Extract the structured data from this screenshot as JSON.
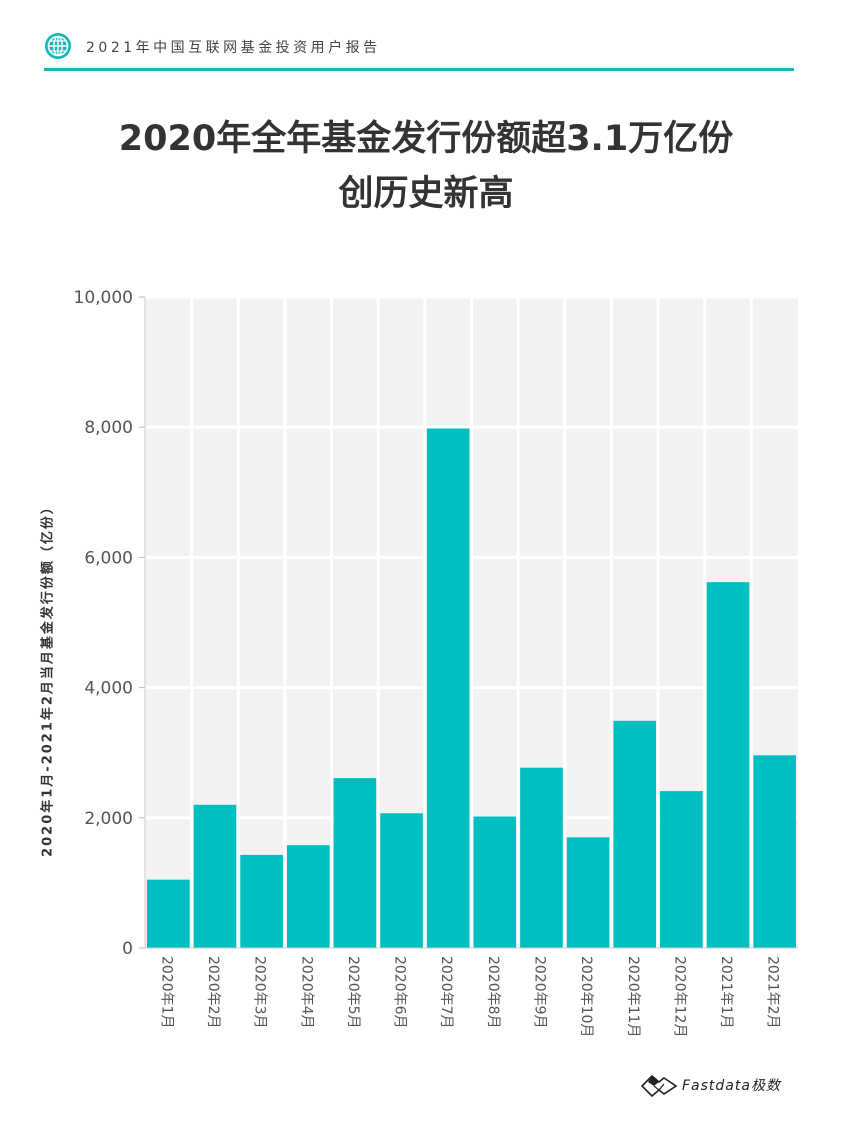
{
  "header": {
    "report_name": "2021年中国互联网基金投资用户报告",
    "icon": "globe-icon",
    "accent_color": "#14b8b8"
  },
  "title": {
    "line1": "2020年全年基金发行份额超3.1万亿份",
    "line2": "创历史新高"
  },
  "chart_data": {
    "type": "bar",
    "title": "",
    "ylabel": "2020年1月-2021年2月当月基金发行份额（亿份）",
    "xlabel": "",
    "ylim": [
      0,
      10000
    ],
    "yticks": [
      "0",
      "2,000",
      "4,000",
      "6,000",
      "8,000",
      "10,000"
    ],
    "ytick_values": [
      0,
      2000,
      4000,
      6000,
      8000,
      10000
    ],
    "categories": [
      "2020年1月",
      "2020年2月",
      "2020年3月",
      "2020年4月",
      "2020年5月",
      "2020年6月",
      "2020年7月",
      "2020年8月",
      "2020年9月",
      "2020年10月",
      "2020年11月",
      "2020年12月",
      "2021年1月",
      "2021年2月"
    ],
    "values": [
      1050,
      2200,
      1430,
      1580,
      2610,
      2070,
      7980,
      2020,
      2770,
      1700,
      3490,
      2410,
      5620,
      2960
    ],
    "bar_color": "#00bfc0",
    "plot_background": "#f2f2f2",
    "grid": true
  },
  "footer": {
    "logo_icon": "mountain-logo-icon",
    "brand": "Fastdata极数"
  }
}
